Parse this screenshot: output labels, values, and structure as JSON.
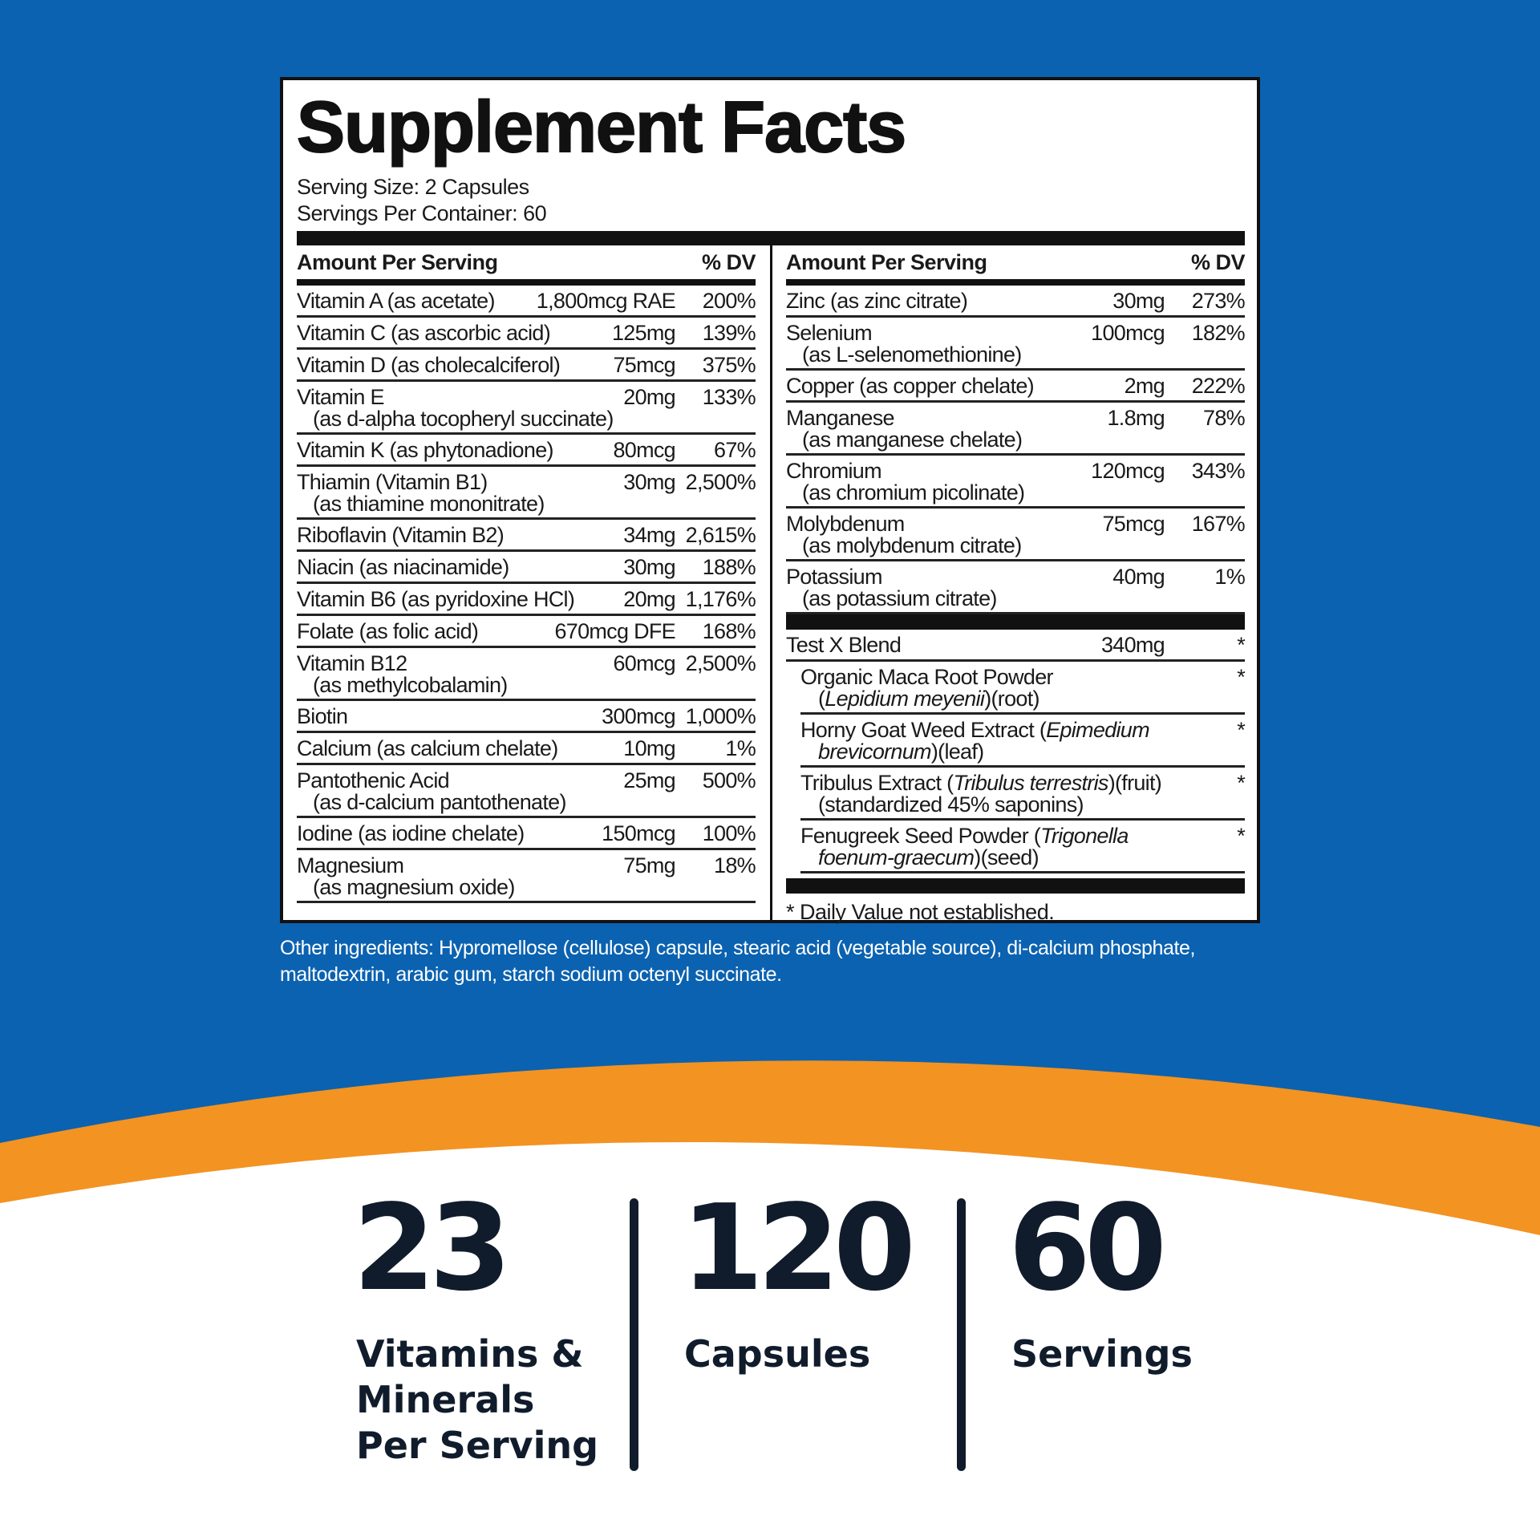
{
  "header": {
    "title": "Supplement Facts",
    "serving_size": "Serving Size: 2 Capsules",
    "servings_per_container": "Servings Per Container: 60"
  },
  "column_header": {
    "amount": "Amount Per Serving",
    "dv": "% DV"
  },
  "left_rows": [
    {
      "name": "Vitamin A (as acetate)",
      "amount": "1,800mcg RAE",
      "dv": "200%"
    },
    {
      "name": "Vitamin C (as ascorbic acid)",
      "amount": "125mg",
      "dv": "139%"
    },
    {
      "name": "Vitamin D (as cholecalciferol)",
      "amount": "75mcg",
      "dv": "375%"
    },
    {
      "name": "Vitamin E",
      "sub": "(as d-alpha tocopheryl succinate)",
      "amount": "20mg",
      "dv": "133%"
    },
    {
      "name": "Vitamin K (as phytonadione)",
      "amount": "80mcg",
      "dv": "67%"
    },
    {
      "name": "Thiamin (Vitamin B1)",
      "sub": "(as thiamine mononitrate)",
      "amount": "30mg",
      "dv": "2,500%"
    },
    {
      "name": "Riboflavin (Vitamin B2)",
      "amount": "34mg",
      "dv": "2,615%"
    },
    {
      "name": "Niacin (as niacinamide)",
      "amount": "30mg",
      "dv": "188%"
    },
    {
      "name": "Vitamin B6 (as pyridoxine HCl)",
      "amount": "20mg",
      "dv": "1,176%"
    },
    {
      "name": "Folate (as folic acid)",
      "amount": "670mcg DFE",
      "dv": "168%"
    },
    {
      "name": "Vitamin B12",
      "sub": "(as methylcobalamin)",
      "amount": "60mcg",
      "dv": "2,500%"
    },
    {
      "name": "Biotin",
      "amount": "300mcg",
      "dv": "1,000%"
    },
    {
      "name": "Calcium (as calcium chelate)",
      "amount": "10mg",
      "dv": "1%"
    },
    {
      "name": "Pantothenic Acid",
      "sub": "(as d-calcium pantothenate)",
      "amount": "25mg",
      "dv": "500%"
    },
    {
      "name": "Iodine (as iodine chelate)",
      "amount": "150mcg",
      "dv": "100%"
    },
    {
      "name": "Magnesium",
      "sub": "(as magnesium oxide)",
      "amount": "75mg",
      "dv": "18%"
    }
  ],
  "right_rows": [
    {
      "name": "Zinc (as zinc citrate)",
      "amount": "30mg",
      "dv": "273%"
    },
    {
      "name": "Selenium",
      "sub": "(as L-selenomethionine)",
      "amount": "100mcg",
      "dv": "182%"
    },
    {
      "name": "Copper (as copper chelate)",
      "amount": "2mg",
      "dv": "222%"
    },
    {
      "name": "Manganese",
      "sub": "(as manganese chelate)",
      "amount": "1.8mg",
      "dv": "78%"
    },
    {
      "name": "Chromium",
      "sub": "(as chromium picolinate)",
      "amount": "120mcg",
      "dv": "343%"
    },
    {
      "name": "Molybdenum",
      "sub": "(as molybdenum citrate)",
      "amount": "75mcg",
      "dv": "167%"
    },
    {
      "name": "Potassium",
      "sub": "(as potassium citrate)",
      "amount": "40mg",
      "dv": "1%"
    }
  ],
  "blend": {
    "name": "Test X Blend",
    "amount": "340mg",
    "dv": "*",
    "ingredients": [
      {
        "lines": [
          [
            {
              "text": "Organic Maca Root Powder"
            }
          ],
          [
            {
              "text": "("
            },
            {
              "text": "Lepidium meyenii",
              "italic": true
            },
            {
              "text": ")(root)"
            }
          ]
        ],
        "dv": "*"
      },
      {
        "lines": [
          [
            {
              "text": "Horny Goat Weed Extract ("
            },
            {
              "text": "Epimedium",
              "italic": true
            }
          ],
          [
            {
              "text": "brevicornum",
              "italic": true
            },
            {
              "text": ")(leaf)"
            }
          ]
        ],
        "dv": "*"
      },
      {
        "lines": [
          [
            {
              "text": "Tribulus Extract ("
            },
            {
              "text": "Tribulus terrestris",
              "italic": true
            },
            {
              "text": ")(fruit)"
            }
          ],
          [
            {
              "text": "(standardized 45% saponins)"
            }
          ]
        ],
        "dv": "*"
      },
      {
        "lines": [
          [
            {
              "text": "Fenugreek Seed Powder ("
            },
            {
              "text": "Trigonella",
              "italic": true
            }
          ],
          [
            {
              "text": "foenum-graecum",
              "italic": true
            },
            {
              "text": ")(seed)"
            }
          ]
        ],
        "dv": "*"
      }
    ]
  },
  "footnote": "* Daily Value not established.",
  "other_ingredients": "Other ingredients: Hypromellose (cellulose) capsule, stearic acid (vegetable source), di-calcium phosphate, maltodextrin, arabic gum, starch sodium octenyl succinate.",
  "stats": [
    {
      "number": "23",
      "label": [
        "Vitamins &",
        "Minerals",
        "Per Serving"
      ]
    },
    {
      "number": "120",
      "label": [
        "Capsules"
      ]
    },
    {
      "number": "60",
      "label": [
        "Servings"
      ]
    }
  ]
}
